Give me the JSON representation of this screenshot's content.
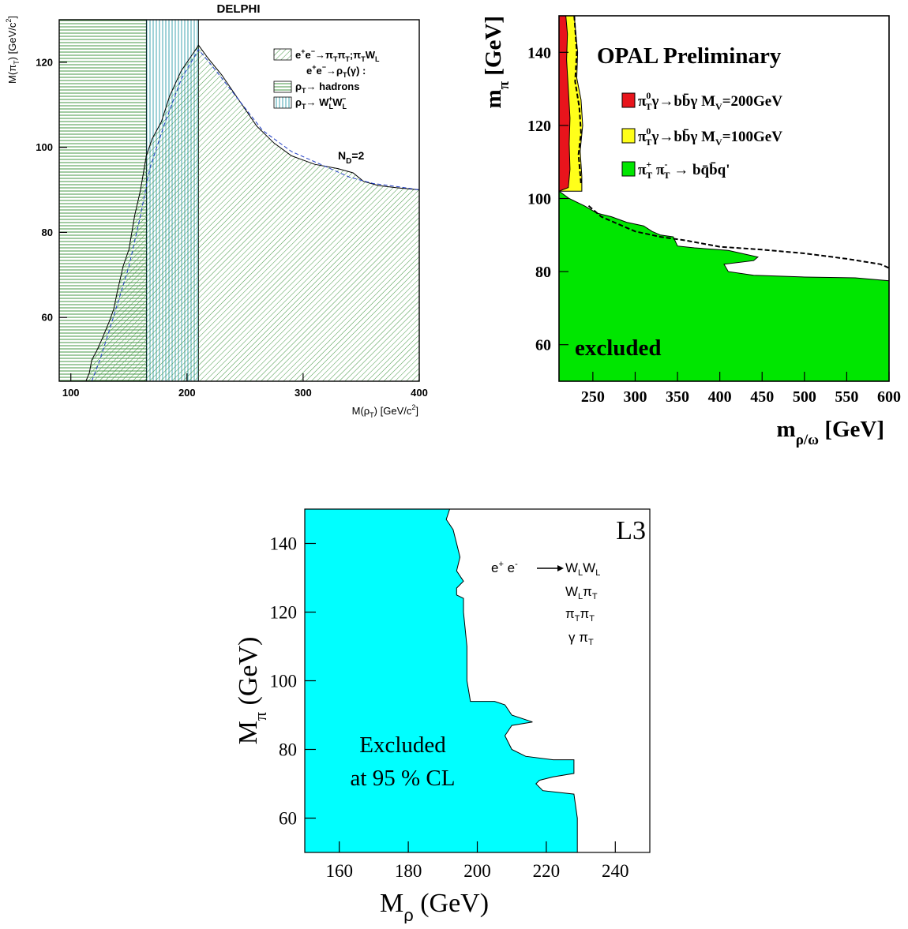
{
  "chart_data": [
    {
      "type": "area",
      "title": "DELPHI",
      "xlabel_main": "M(ρ",
      "xlabel_sub": "T",
      "xlabel_unit": ") [GeV/c",
      "xlabel_sup": "2",
      "xlabel_end": "]",
      "ylabel_main": "M(π",
      "ylabel_sub": "T",
      "ylabel_unit": ") [GeV/c",
      "ylabel_sup": "2",
      "ylabel_end": "]",
      "xlim": [
        90,
        400
      ],
      "ylim": [
        45,
        130
      ],
      "xticks": [
        100,
        200,
        300,
        400
      ],
      "yticks": [
        60,
        80,
        100,
        120
      ],
      "legend": {
        "placement": "top-right",
        "entry1": {
          "a": "e",
          "a_sup": "+",
          "b": "e",
          "b_sup": "−",
          "c": "→π",
          "c_sub": "T",
          "d": "π",
          "d_sub": "T",
          "e": ";π",
          "e_sub": "T",
          "f": "W",
          "f_sub": "L"
        },
        "header2": {
          "a": "e",
          "a_sup": "+",
          "b": "e",
          "b_sup": "−",
          "c": "→ρ",
          "c_sub": "T",
          "d": "(γ) :"
        },
        "entry2": {
          "a": "ρ",
          "a_sub": "T",
          "b": "→ hadrons"
        },
        "entry3": {
          "a": "ρ",
          "a_sub": "T",
          "b": "→ W",
          "b_sub": "L",
          "b_sup": "+",
          "c": "W",
          "c_sub": "L",
          "c_sup": "−"
        }
      },
      "annotation": {
        "a": "N",
        "a_sub": "D",
        "b": "=2"
      },
      "series": [
        {
          "region": "rho_T → hadrons",
          "color": "#2e8b2e",
          "x_range": [
            90,
            165
          ],
          "y_range": [
            45,
            130
          ]
        },
        {
          "region": "rho_T → W_L W_L",
          "color": "#2b9aa8",
          "x_range": [
            165,
            210
          ],
          "y_range": [
            45,
            130
          ]
        },
        {
          "region": "e+e- → pi_T pi_T ; pi_T W_L",
          "color": "#2e8b2e",
          "boundary": [
            [
              113,
              45
            ],
            [
              116,
              47
            ],
            [
              118,
              50
            ],
            [
              122,
              52
            ],
            [
              127,
              55
            ],
            [
              133,
              59
            ],
            [
              137,
              62
            ],
            [
              140,
              66
            ],
            [
              145,
              72
            ],
            [
              150,
              76
            ],
            [
              155,
              84
            ],
            [
              160,
              90
            ],
            [
              165,
              98
            ],
            [
              170,
              102
            ],
            [
              178,
              106
            ],
            [
              185,
              112
            ],
            [
              195,
              118
            ],
            [
              205,
              122
            ],
            [
              210,
              124
            ],
            [
              218,
              121
            ],
            [
              230,
              117
            ],
            [
              245,
              111
            ],
            [
              260,
              105
            ],
            [
              275,
              101
            ],
            [
              290,
              98
            ],
            [
              310,
              96
            ],
            [
              330,
              95
            ],
            [
              343,
              94
            ],
            [
              352,
              92
            ],
            [
              365,
              91
            ],
            [
              380,
              90.5
            ],
            [
              400,
              90
            ]
          ]
        },
        {
          "region": "expected limit (dashed)",
          "color": "#1f3dc4",
          "points": [
            [
              118,
              45
            ],
            [
              125,
              50
            ],
            [
              132,
              56
            ],
            [
              140,
              63
            ],
            [
              150,
              72
            ],
            [
              160,
              84
            ],
            [
              168,
              95
            ],
            [
              180,
              105
            ],
            [
              195,
              116
            ],
            [
              210,
              123
            ],
            [
              225,
              118
            ],
            [
              245,
              111
            ],
            [
              265,
              104
            ],
            [
              290,
              99
            ],
            [
              315,
              96
            ],
            [
              340,
              93
            ],
            [
              360,
              91.5
            ],
            [
              380,
              90.8
            ],
            [
              400,
              90
            ]
          ]
        }
      ]
    },
    {
      "type": "area",
      "title": "OPAL Preliminary",
      "xlabel_main": "m",
      "xlabel_sub": "ρ/ω",
      "xlabel_unit": " [GeV]",
      "ylabel_main": "m",
      "ylabel_sub": "π",
      "ylabel_unit": " [GeV]",
      "xlim": [
        210,
        600
      ],
      "ylim": [
        50,
        150
      ],
      "xticks": [
        250,
        300,
        350,
        400,
        450,
        500,
        550,
        600
      ],
      "yticks": [
        60,
        80,
        100,
        120,
        140
      ],
      "legend": {
        "placement": "top-right",
        "entry1": {
          "a": "π",
          "a_sup": "0",
          "a_sub": "T",
          "b": "γ→bb̄γ M",
          "b_sub": "V",
          "c": "=200GeV",
          "color": "#e8141c"
        },
        "entry2": {
          "a": "π",
          "a_sup": "0",
          "a_sub": "T",
          "b": "γ→bb̄γ M",
          "b_sub": "V",
          "c": "=100GeV",
          "color": "#ffff1a"
        },
        "entry3": {
          "a": "π",
          "a_sup": "+",
          "a_sub": "T",
          "b": " π",
          "b_sup": "-",
          "b_sub": "T",
          "c": " → bq̄b̄q'",
          "color": "#00e600"
        }
      },
      "annotation": "excluded",
      "series": [
        {
          "name": "π0T γ → bb̄γ MV=200GeV",
          "color": "#e8141c",
          "boundary": [
            [
              212,
              150
            ],
            [
              218,
              150
            ],
            [
              220,
              145
            ],
            [
              219,
              138
            ],
            [
              221,
              130
            ],
            [
              223,
              122
            ],
            [
              222,
              115
            ],
            [
              223,
              108
            ],
            [
              221,
              103
            ]
          ]
        },
        {
          "name": "π0T γ → bb̄γ MV=100GeV",
          "color": "#ffff1a",
          "boundary": [
            [
              218,
              150
            ],
            [
              228,
              150
            ],
            [
              230,
              145
            ],
            [
              232,
              140
            ],
            [
              231,
              133
            ],
            [
              236,
              127
            ],
            [
              238,
              120
            ],
            [
              235,
              113
            ],
            [
              237,
              106
            ],
            [
              237,
              102
            ]
          ]
        },
        {
          "name": "π+T π-T → bq̄b̄q'",
          "color": "#00e600",
          "boundary": [
            [
              210,
              102
            ],
            [
              222,
              100
            ],
            [
              240,
              98
            ],
            [
              255,
              96
            ],
            [
              272,
              95
            ],
            [
              290,
              93.5
            ],
            [
              310,
              92.5
            ],
            [
              320,
              91
            ],
            [
              330,
              90
            ],
            [
              345,
              89.5
            ],
            [
              350,
              87
            ],
            [
              370,
              86.5
            ],
            [
              410,
              85.8
            ],
            [
              445,
              84
            ],
            [
              440,
              83
            ],
            [
              405,
              82
            ],
            [
              410,
              80
            ],
            [
              440,
              79
            ],
            [
              500,
              78.5
            ],
            [
              560,
              78.3
            ],
            [
              600,
              77.5
            ]
          ]
        },
        {
          "name": "expected limit (dashed)",
          "color": "#000000",
          "points": [
            [
              245,
              98
            ],
            [
              260,
              95
            ],
            [
              280,
              93
            ],
            [
              300,
              91
            ],
            [
              330,
              89.5
            ],
            [
              360,
              88.5
            ],
            [
              400,
              86.8
            ],
            [
              450,
              86
            ],
            [
              500,
              85
            ],
            [
              550,
              83.5
            ],
            [
              590,
              82
            ],
            [
              600,
              81
            ]
          ]
        }
      ]
    },
    {
      "type": "area",
      "title": "L3",
      "xlabel_main": "M",
      "xlabel_sub": "ρ",
      "xlabel_unit": " (GeV)",
      "ylabel_main": "M",
      "ylabel_sub": "π",
      "ylabel_unit": " (GeV)",
      "xlim": [
        150,
        250
      ],
      "ylim": [
        50,
        150
      ],
      "xticks": [
        160,
        180,
        200,
        220,
        240
      ],
      "yticks": [
        60,
        80,
        100,
        120,
        140
      ],
      "legend": {
        "placement": "top-right",
        "process": {
          "a": "e",
          "a_sup": "+",
          "b": " e",
          "b_sup": "-"
        },
        "l1": {
          "a": "W",
          "a_sub": "L",
          "b": "W",
          "b_sub": "L"
        },
        "l2": {
          "a": "W",
          "a_sub": "L",
          "b": "π",
          "b_sub": "T"
        },
        "l3": {
          "a": "π",
          "a_sub": "T",
          "b": "π",
          "b_sub": "T"
        },
        "l4": {
          "a": "γ π",
          "a_sub": "T"
        }
      },
      "annotation_line1": "Excluded",
      "annotation_line2": "at 95 % CL",
      "series": [
        {
          "region": "Excluded at 95 % CL",
          "color": "#00ffff",
          "boundary": [
            [
              192,
              150
            ],
            [
              191,
              147
            ],
            [
              193,
              144
            ],
            [
              194,
              140
            ],
            [
              195,
              136
            ],
            [
              194,
              132
            ],
            [
              196,
              129
            ],
            [
              194,
              127
            ],
            [
              194,
              125
            ],
            [
              196,
              124
            ],
            [
              196,
              120
            ],
            [
              197,
              110
            ],
            [
              197,
              100
            ],
            [
              198,
              94
            ],
            [
              205,
              94
            ],
            [
              208,
              93
            ],
            [
              210,
              90
            ],
            [
              216,
              88
            ],
            [
              210,
              87
            ],
            [
              208,
              84
            ],
            [
              210,
              80
            ],
            [
              214,
              78
            ],
            [
              222,
              77
            ],
            [
              228,
              77
            ],
            [
              228,
              73
            ],
            [
              222,
              72
            ],
            [
              218,
              71
            ],
            [
              217,
              70
            ],
            [
              219,
              68
            ],
            [
              228,
              67
            ],
            [
              229,
              60
            ],
            [
              229,
              50
            ]
          ]
        }
      ]
    }
  ]
}
